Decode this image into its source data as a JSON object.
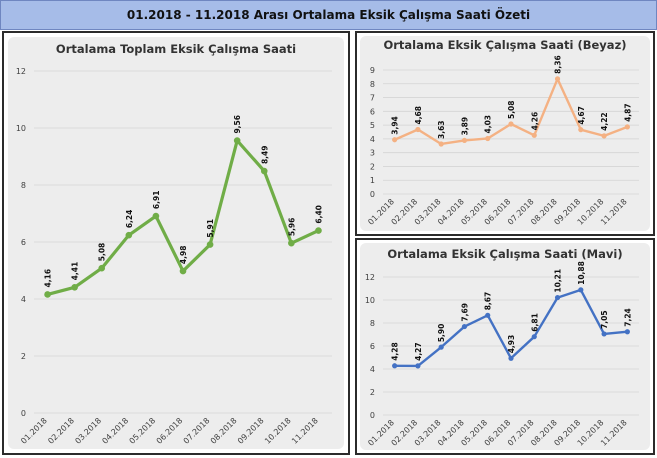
{
  "page_title": "01.2018 - 11.2018 Arası Ortalama Eksik Çalışma Saati Özeti",
  "chart_data": [
    {
      "type": "line",
      "title": "Ortalama Toplam Eksik Çalışma Saati",
      "categories": [
        "01.2018",
        "02.2018",
        "03.2018",
        "04.2018",
        "05.2018",
        "06.2018",
        "07.2018",
        "08.2018",
        "09.2018",
        "10.2018",
        "11.2018"
      ],
      "values": [
        4.16,
        4.41,
        5.08,
        6.24,
        6.91,
        4.98,
        5.91,
        9.56,
        8.49,
        5.96,
        6.4
      ],
      "value_labels": [
        "4,16",
        "4,41",
        "5,08",
        "6,24",
        "6,91",
        "4,98",
        "5,91",
        "9,56",
        "8,49",
        "5,96",
        "6,40"
      ],
      "ylim": [
        0,
        12
      ],
      "yticks": [
        "0",
        "2",
        "4",
        "6",
        "8",
        "10",
        "12"
      ],
      "color": "#70ad47",
      "background": "#ededed",
      "grid": true
    },
    {
      "type": "line",
      "title": "Ortalama Eksik Çalışma Saati (Beyaz)",
      "categories": [
        "01.2018",
        "02.2018",
        "03.2018",
        "04.2018",
        "05.2018",
        "06.2018",
        "07.2018",
        "08.2018",
        "09.2018",
        "10.2018",
        "11.2018"
      ],
      "values": [
        3.94,
        4.68,
        3.63,
        3.89,
        4.03,
        5.08,
        4.26,
        8.36,
        4.67,
        4.22,
        4.87
      ],
      "value_labels": [
        "3,94",
        "4,68",
        "3,63",
        "3,89",
        "4,03",
        "5,08",
        "4,26",
        "8,36",
        "4,67",
        "4,22",
        "4,87"
      ],
      "ylim": [
        0,
        9
      ],
      "yticks": [
        "0",
        "1",
        "2",
        "3",
        "4",
        "5",
        "6",
        "7",
        "8",
        "9"
      ],
      "color": "#f4b183",
      "background": "#ededed",
      "grid": true
    },
    {
      "type": "line",
      "title": "Ortalama Eksik Çalışma Saati (Mavi)",
      "categories": [
        "01.2018",
        "02.2018",
        "03.2018",
        "04.2018",
        "05.2018",
        "06.2018",
        "07.2018",
        "08.2018",
        "09.2018",
        "10.2018",
        "11.2018"
      ],
      "values": [
        4.28,
        4.27,
        5.9,
        7.69,
        8.67,
        4.93,
        6.81,
        10.21,
        10.88,
        7.05,
        7.24
      ],
      "value_labels": [
        "4,28",
        "4,27",
        "5,90",
        "7,69",
        "8,67",
        "4,93",
        "6,81",
        "10,21",
        "10,88",
        "7,05",
        "7,24"
      ],
      "ylim": [
        0,
        12
      ],
      "yticks": [
        "0",
        "2",
        "4",
        "6",
        "8",
        "10",
        "12"
      ],
      "color": "#4472c4",
      "background": "#ededed",
      "grid": true
    }
  ]
}
